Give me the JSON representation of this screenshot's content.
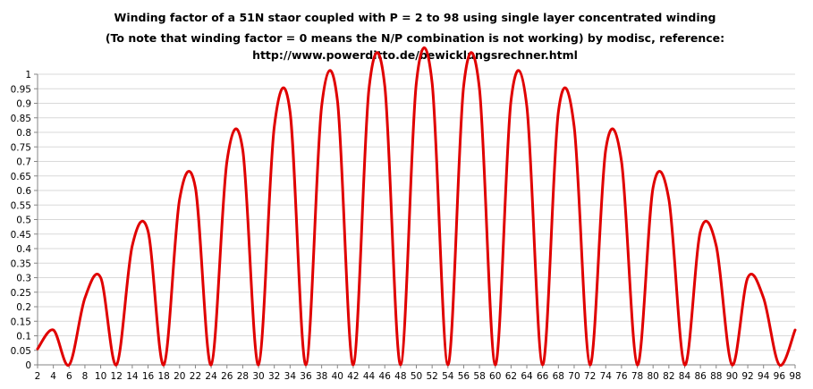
{
  "chart_data": {
    "type": "line",
    "title": [
      "Winding factor of a 51N staor coupled with P = 2 to 98 using single layer concentrated winding",
      "(To note that winding factor = 0 means the N/P combination is not working) by modisc, reference:",
      "http://www.powerditto.de/bewicklungsrechner.html"
    ],
    "xlabel": "",
    "ylabel": "",
    "x": [
      2,
      4,
      6,
      8,
      10,
      12,
      14,
      16,
      18,
      20,
      22,
      24,
      26,
      28,
      30,
      32,
      34,
      36,
      38,
      40,
      42,
      44,
      46,
      48,
      50,
      52,
      54,
      56,
      58,
      60,
      62,
      64,
      66,
      68,
      70,
      72,
      74,
      76,
      78,
      80,
      82,
      84,
      86,
      88,
      90,
      92,
      94,
      96,
      98
    ],
    "series": [
      {
        "name": "",
        "color": "#e00000",
        "values": [
          0.055,
          0.12,
          0,
          0.23,
          0.3,
          0,
          0.41,
          0.46,
          0,
          0.57,
          0.61,
          0,
          0.7,
          0.74,
          0,
          0.82,
          0.87,
          0,
          0.89,
          0.91,
          0,
          0.95,
          0.96,
          0,
          0.97,
          0.97,
          0,
          0.96,
          0.95,
          0,
          0.91,
          0.89,
          0,
          0.87,
          0.82,
          0,
          0.74,
          0.7,
          0,
          0.61,
          0.57,
          0,
          0.46,
          0.41,
          0,
          0.3,
          0.23,
          0,
          0.12
        ]
      }
    ],
    "xticks": [
      "2",
      "4",
      "6",
      "8",
      "10",
      "12",
      "14",
      "16",
      "18",
      "20",
      "22",
      "24",
      "26",
      "28",
      "30",
      "32",
      "34",
      "36",
      "38",
      "40",
      "42",
      "44",
      "46",
      "48",
      "50",
      "52",
      "54",
      "56",
      "58",
      "60",
      "62",
      "64",
      "66",
      "68",
      "70",
      "72",
      "74",
      "76",
      "78",
      "80",
      "82",
      "84",
      "86",
      "88",
      "90",
      "92",
      "94",
      "96",
      "98"
    ],
    "yticks": [
      "0",
      "0.05",
      "0.1",
      "0.15",
      "0.2",
      "0.25",
      "0.3",
      "0.35",
      "0.4",
      "0.45",
      "0.5",
      "0.55",
      "0.6",
      "0.65",
      "0.7",
      "0.75",
      "0.8",
      "0.85",
      "0.9",
      "0.95",
      "1"
    ],
    "ylim": [
      0,
      1
    ],
    "xlim": [
      2,
      98
    ],
    "grid": true,
    "legend": "none"
  }
}
